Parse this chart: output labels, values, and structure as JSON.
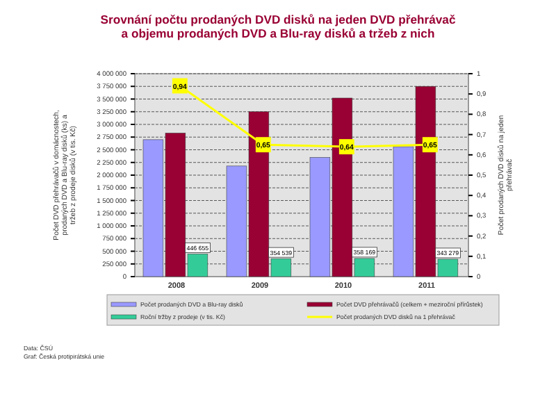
{
  "chart_data": {
    "type": "bar",
    "title": "Srovnání počtu prodaných DVD disků na jeden DVD přehrávač a objemu prodaných DVD a Blu-ray disků a tržeb z nich",
    "categories": [
      "2008",
      "2009",
      "2010",
      "2011"
    ],
    "ylabel": "Počet DVD přehrávačů v domácnostech, prodaných DVD a Blu-ray disků (ks) a tržeb z prodeje disků (v tis. Kč)",
    "y2label": "Počet prodaných DVD disků na jeden přehrávač",
    "ylim": [
      0,
      4000000
    ],
    "yticks": [
      {
        "value": 0,
        "label": "0"
      },
      {
        "value": 250000,
        "label": "250 000"
      },
      {
        "value": 500000,
        "label": "500 000"
      },
      {
        "value": 750000,
        "label": "750 000"
      },
      {
        "value": 1000000,
        "label": "1 000 000"
      },
      {
        "value": 1250000,
        "label": "1 250 000"
      },
      {
        "value": 1500000,
        "label": "1 500 000"
      },
      {
        "value": 1750000,
        "label": "1 750 000"
      },
      {
        "value": 2000000,
        "label": "2 000 000"
      },
      {
        "value": 2250000,
        "label": "2 250 000"
      },
      {
        "value": 2500000,
        "label": "2 500 000"
      },
      {
        "value": 2750000,
        "label": "2 750 000"
      },
      {
        "value": 3000000,
        "label": "3 000 000"
      },
      {
        "value": 3250000,
        "label": "3 250 000"
      },
      {
        "value": 3500000,
        "label": "3 500 000"
      },
      {
        "value": 3750000,
        "label": "3 750 000"
      },
      {
        "value": 4000000,
        "label": "4 000 000"
      }
    ],
    "y2lim": [
      0,
      1
    ],
    "y2ticks": [
      0,
      {
        "value": 0.1,
        "label": "0,1"
      },
      {
        "value": 0.2,
        "label": "0,2"
      },
      {
        "value": 0.3,
        "label": "0,3"
      },
      {
        "value": 0.4,
        "label": "0,4"
      },
      {
        "value": 0.5,
        "label": "0,5"
      },
      {
        "value": 0.6,
        "label": "0,6"
      },
      {
        "value": 0.7,
        "label": "0,7"
      },
      {
        "value": 0.8,
        "label": "0,8"
      },
      {
        "value": 0.9,
        "label": "0,9"
      },
      1
    ],
    "grid": "y",
    "legend": "bottom",
    "series": [
      {
        "name": "Počet prodaných DVD a Blu-ray disků",
        "color": "#9999ff",
        "values": [
          2700000,
          2180000,
          2350000,
          2560000
        ]
      },
      {
        "name": "Počet DVD přehrávačů (celkem + meziroční přírůstek)",
        "color": "#990033",
        "values": [
          2830000,
          3250000,
          3520000,
          3750000
        ]
      },
      {
        "name": "Roční tržby z prodeje (v tis. Kč)",
        "color": "#33cc99",
        "values": [
          446655,
          354539,
          358169,
          343279
        ],
        "value_labels": [
          "446 655",
          "354 539",
          "358 169",
          "343 279"
        ]
      },
      {
        "name": "Počet prodaných DVD disků na 1 přehrávač",
        "type": "line",
        "axis": "y2",
        "marker": "square",
        "color": "#ffff00",
        "values": [
          0.94,
          0.65,
          0.64,
          0.65
        ],
        "value_labels": [
          "0,94",
          "0,65",
          "0,64",
          "0,65"
        ]
      }
    ],
    "annotations": [
      "Data: ČSÚ",
      "Graf: Česká protipirátská unie"
    ]
  }
}
